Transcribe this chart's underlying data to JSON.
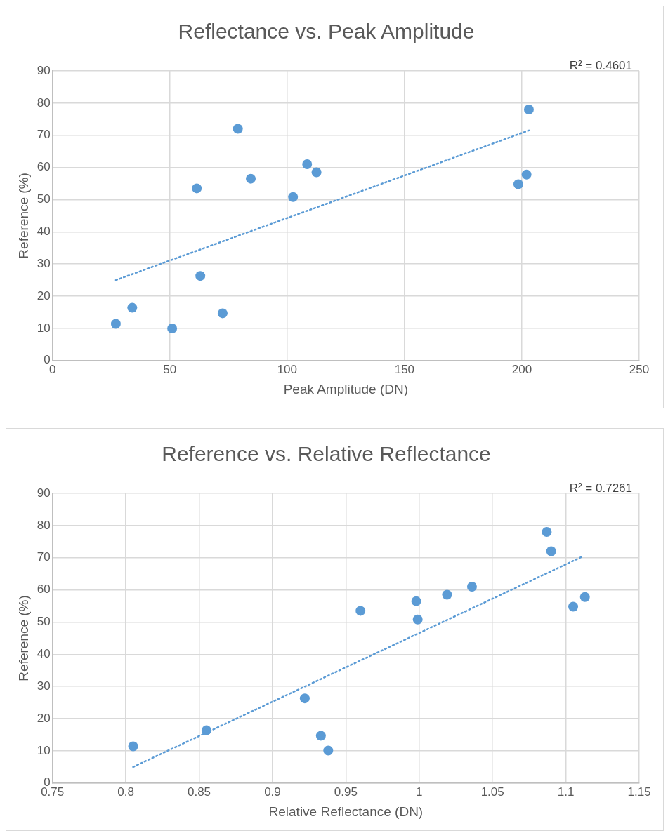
{
  "chart_data": [
    {
      "type": "scatter",
      "title": "Reflectance vs. Peak Amplitude",
      "xlabel": "Peak Amplitude (DN)",
      "ylabel": "Reference (%)",
      "annotations": [
        "R² = 0.4601"
      ],
      "xlim": [
        0,
        250
      ],
      "xticks": [
        0,
        50,
        100,
        150,
        200,
        250
      ],
      "ylim": [
        0,
        90
      ],
      "yticks": [
        0,
        10,
        20,
        30,
        40,
        50,
        60,
        70,
        80,
        90
      ],
      "grid": true,
      "legend": false,
      "marker": "circle",
      "series": [
        {
          "type": "scatter",
          "color": "#5b9bd5",
          "x": [
            27,
            34,
            51,
            61.5,
            63,
            72.5,
            79,
            84.5,
            102.5,
            108.5,
            112.5,
            198.5,
            202,
            203
          ],
          "values": [
            11.4,
            16.4,
            10,
            53.5,
            26.3,
            14.7,
            72,
            56.5,
            50.8,
            61,
            58.5,
            54.8,
            57.8,
            78
          ]
        },
        {
          "type": "line",
          "color": "#5b9bd5",
          "line_style": "dotted",
          "marker": "none",
          "x": [
            27,
            203
          ],
          "values": [
            25,
            71.5
          ]
        }
      ]
    },
    {
      "type": "scatter",
      "title": "Reference vs. Relative Reflectance",
      "xlabel": "Relative Reflectance (DN)",
      "ylabel": "Reference (%)",
      "annotations": [
        "R² = 0.7261"
      ],
      "xlim": [
        0.75,
        1.15
      ],
      "xticks": [
        0.75,
        0.8,
        0.85,
        0.9,
        0.95,
        1,
        1.05,
        1.1,
        1.15
      ],
      "ylim": [
        0,
        90
      ],
      "yticks": [
        0,
        10,
        20,
        30,
        40,
        50,
        60,
        70,
        80,
        90
      ],
      "grid": true,
      "legend": false,
      "marker": "circle",
      "series": [
        {
          "type": "scatter",
          "color": "#5b9bd5",
          "x": [
            0.805,
            0.855,
            0.938,
            0.96,
            0.922,
            0.933,
            1.09,
            0.998,
            0.999,
            1.036,
            1.019,
            1.105,
            1.113,
            1.087
          ],
          "values": [
            11.4,
            16.4,
            10.1,
            53.5,
            26.3,
            14.7,
            72,
            56.5,
            50.8,
            61,
            58.5,
            54.8,
            57.8,
            78
          ]
        },
        {
          "type": "line",
          "color": "#5b9bd5",
          "line_style": "dotted",
          "marker": "none",
          "x": [
            0.805,
            1.112
          ],
          "values": [
            5,
            70.5
          ]
        }
      ]
    }
  ]
}
